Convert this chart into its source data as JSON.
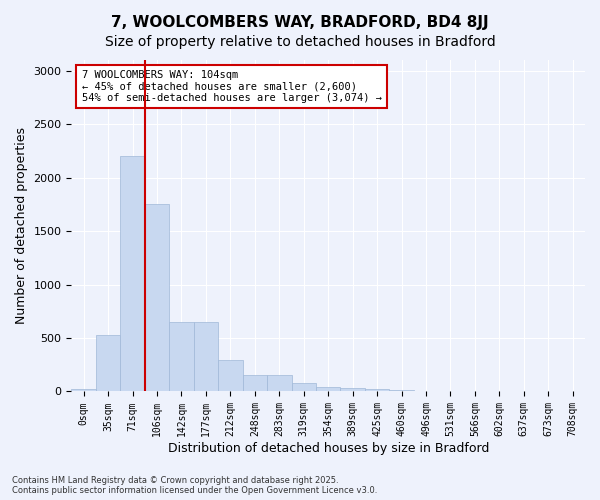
{
  "title1": "7, WOOLCOMBERS WAY, BRADFORD, BD4 8JJ",
  "title2": "Size of property relative to detached houses in Bradford",
  "xlabel": "Distribution of detached houses by size in Bradford",
  "ylabel": "Number of detached properties",
  "bar_values": [
    25,
    530,
    2200,
    1750,
    650,
    650,
    290,
    155,
    155,
    80,
    45,
    30,
    20,
    15,
    0,
    0,
    0,
    0,
    0,
    0,
    0
  ],
  "categories": [
    "0sqm",
    "35sqm",
    "71sqm",
    "106sqm",
    "142sqm",
    "177sqm",
    "212sqm",
    "248sqm",
    "283sqm",
    "319sqm",
    "354sqm",
    "389sqm",
    "425sqm",
    "460sqm",
    "496sqm",
    "531sqm",
    "566sqm",
    "602sqm",
    "637sqm",
    "673sqm",
    "708sqm"
  ],
  "bar_color": "#c8d8f0",
  "bar_edge_color": "#a0b8d8",
  "vline_color": "#cc0000",
  "annotation_text": "7 WOOLCOMBERS WAY: 104sqm\n← 45% of detached houses are smaller (2,600)\n54% of semi-detached houses are larger (3,074) →",
  "annotation_box_color": "#ffffff",
  "annotation_box_edge": "#cc0000",
  "ylim": [
    0,
    3100
  ],
  "yticks": [
    0,
    500,
    1000,
    1500,
    2000,
    2500,
    3000
  ],
  "background_color": "#eef2fc",
  "footer_text": "Contains HM Land Registry data © Crown copyright and database right 2025.\nContains public sector information licensed under the Open Government Licence v3.0.",
  "grid_color": "#ffffff",
  "title_fontsize": 11,
  "subtitle_fontsize": 10
}
